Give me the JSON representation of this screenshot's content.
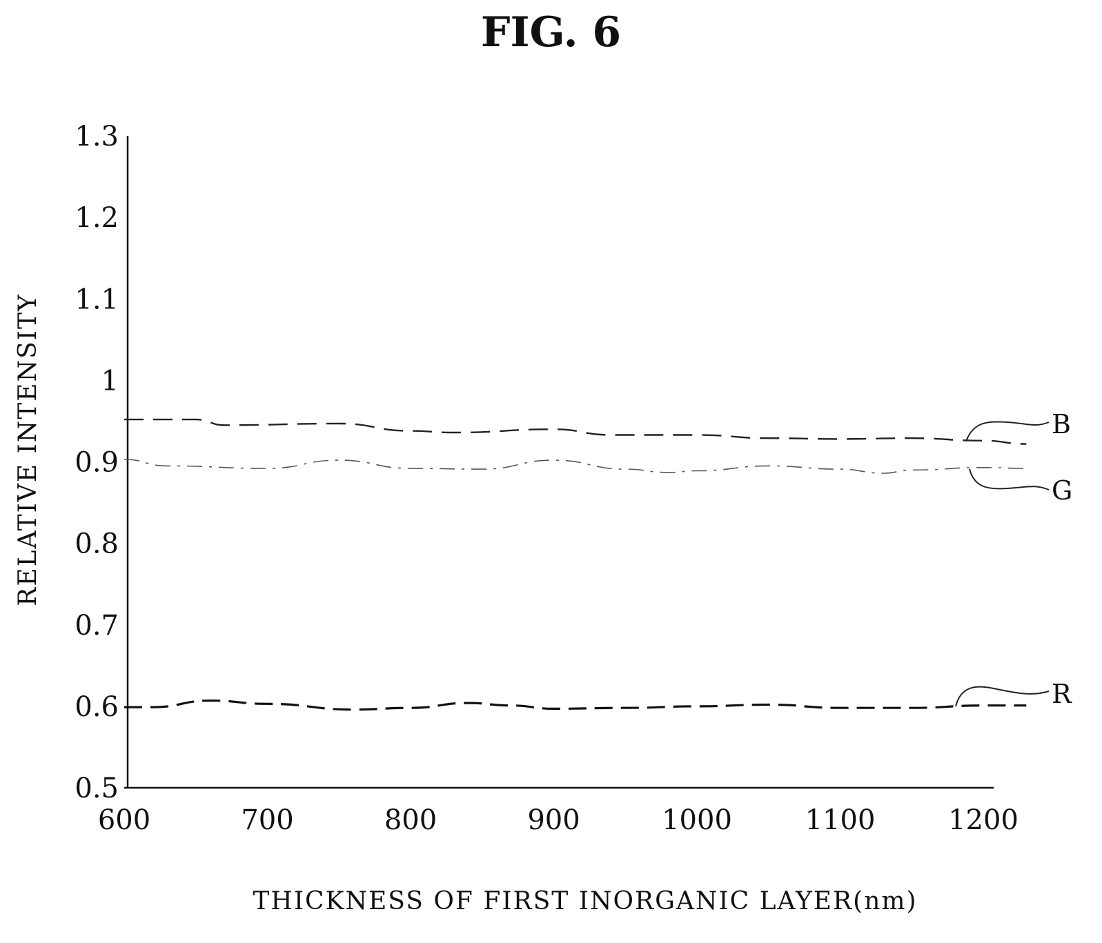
{
  "figure": {
    "title": "FIG. 6"
  },
  "chart_data": {
    "type": "line",
    "xlabel": "THICKNESS OF FIRST INORGANIC LAYER(nm)",
    "ylabel": "RELATIVE INTENSITY",
    "xlim": [
      600,
      1200
    ],
    "ylim": [
      0.5,
      1.3
    ],
    "x_ticks": [
      "600",
      "700",
      "800",
      "900",
      "1000",
      "1100",
      "1200"
    ],
    "y_ticks": [
      "0.5",
      "0.6",
      "0.7",
      "0.8",
      "0.9",
      "1",
      "1.1",
      "1.2",
      "1.3"
    ],
    "grid": false,
    "legend": "labels at right end of each line",
    "series": [
      {
        "name": "B",
        "style": "dashed",
        "x": [
          600,
          650,
          670,
          750,
          800,
          830,
          900,
          940,
          1000,
          1050,
          1100,
          1150,
          1200,
          1230
        ],
        "y": [
          0.952,
          0.952,
          0.945,
          0.947,
          0.938,
          0.936,
          0.94,
          0.933,
          0.933,
          0.929,
          0.928,
          0.929,
          0.926,
          0.922
        ]
      },
      {
        "name": "G",
        "style": "dash-dot",
        "x": [
          600,
          630,
          700,
          750,
          800,
          850,
          900,
          950,
          980,
          1000,
          1050,
          1100,
          1130,
          1150,
          1200,
          1230
        ],
        "y": [
          0.903,
          0.895,
          0.892,
          0.902,
          0.892,
          0.891,
          0.902,
          0.891,
          0.887,
          0.889,
          0.895,
          0.891,
          0.886,
          0.89,
          0.893,
          0.892
        ]
      },
      {
        "name": "R",
        "style": "long-dash",
        "x": [
          600,
          620,
          660,
          700,
          760,
          800,
          840,
          870,
          900,
          950,
          1000,
          1050,
          1100,
          1150,
          1200,
          1230
        ],
        "y": [
          0.599,
          0.599,
          0.607,
          0.603,
          0.596,
          0.598,
          0.604,
          0.601,
          0.597,
          0.598,
          0.6,
          0.602,
          0.598,
          0.598,
          0.601,
          0.601
        ]
      }
    ]
  }
}
